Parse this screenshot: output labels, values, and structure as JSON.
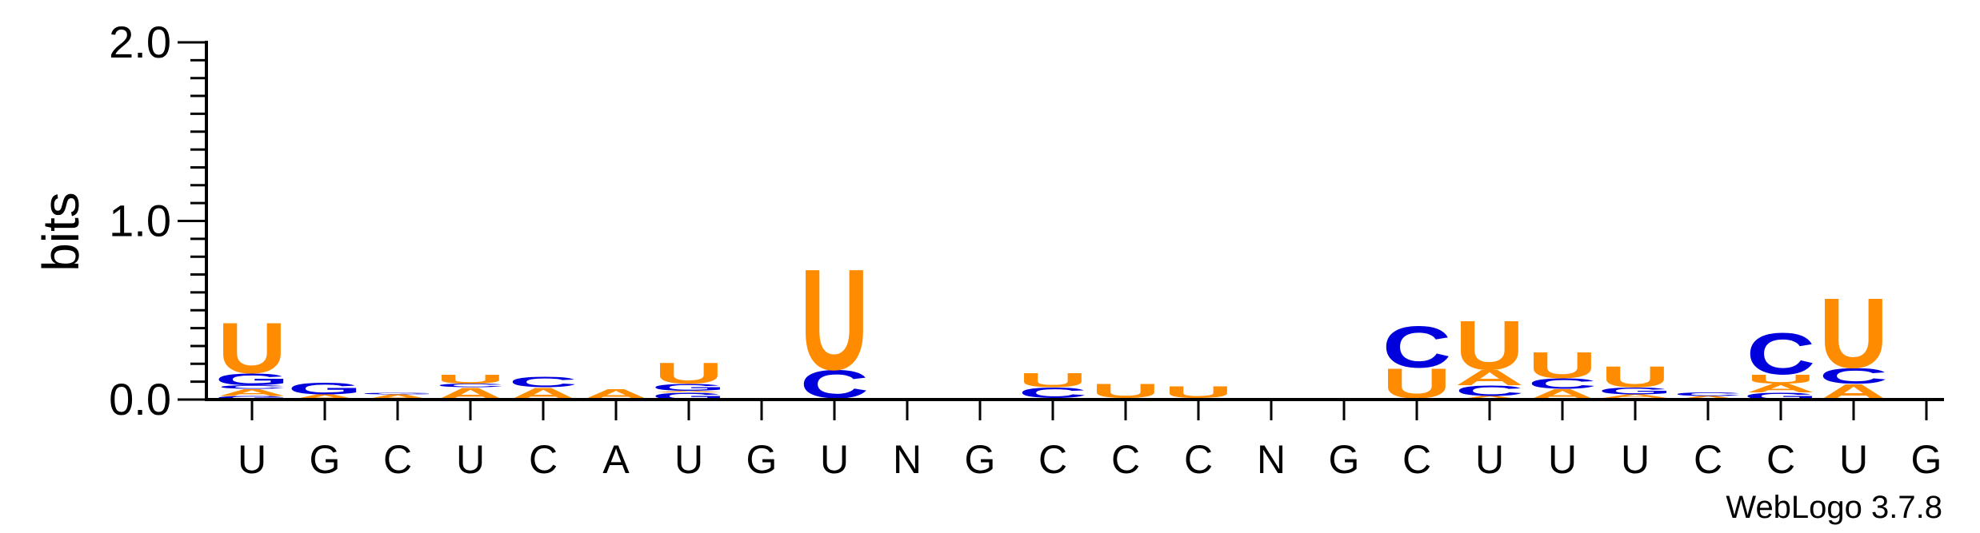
{
  "colors": {
    "U": "#FF8C00",
    "A": "#FF8C00",
    "C": "#0000DD",
    "G": "#0000DD",
    "axis": "#000000"
  },
  "chart_data": {
    "type": "sequence-logo",
    "ylabel": "bits",
    "ylim": [
      0,
      2.0
    ],
    "yticks": [
      "0.0",
      "1.0",
      "2.0"
    ],
    "credit": "WebLogo 3.7.8",
    "positions": [
      {
        "label": "U",
        "stack": [
          [
            "G",
            0.02
          ],
          [
            "A",
            0.04
          ],
          [
            "C",
            0.02
          ],
          [
            "G",
            0.07
          ],
          [
            "U",
            0.29
          ]
        ]
      },
      {
        "label": "G",
        "stack": [
          [
            "A",
            0.03
          ],
          [
            "G",
            0.07
          ]
        ]
      },
      {
        "label": "C",
        "stack": [
          [
            "A",
            0.03
          ],
          [
            "G",
            0.01
          ]
        ]
      },
      {
        "label": "U",
        "stack": [
          [
            "A",
            0.07
          ],
          [
            "C",
            0.02
          ],
          [
            "U",
            0.05
          ]
        ]
      },
      {
        "label": "C",
        "stack": [
          [
            "A",
            0.07
          ],
          [
            "C",
            0.06
          ]
        ]
      },
      {
        "label": "A",
        "stack": [
          [
            "A",
            0.06
          ]
        ]
      },
      {
        "label": "U",
        "stack": [
          [
            "G",
            0.04
          ],
          [
            "A",
            0.01
          ],
          [
            "G",
            0.04
          ],
          [
            "U",
            0.12
          ]
        ]
      },
      {
        "label": "G",
        "stack": []
      },
      {
        "label": "U",
        "stack": [
          [
            "G",
            0.01
          ],
          [
            "C",
            0.16
          ],
          [
            "U",
            0.58
          ]
        ]
      },
      {
        "label": "N",
        "stack": []
      },
      {
        "label": "G",
        "stack": [
          [
            "G",
            0.01
          ]
        ]
      },
      {
        "label": "C",
        "stack": [
          [
            "A",
            0.01
          ],
          [
            "C",
            0.06
          ],
          [
            "U",
            0.08
          ]
        ]
      },
      {
        "label": "C",
        "stack": [
          [
            "C",
            0.01
          ],
          [
            "U",
            0.08
          ]
        ]
      },
      {
        "label": "C",
        "stack": [
          [
            "A",
            0.01
          ],
          [
            "U",
            0.07
          ]
        ]
      },
      {
        "label": "N",
        "stack": []
      },
      {
        "label": "G",
        "stack": []
      },
      {
        "label": "C",
        "stack": [
          [
            "A",
            0.01
          ],
          [
            "U",
            0.17
          ],
          [
            "C",
            0.24
          ]
        ]
      },
      {
        "label": "U",
        "stack": [
          [
            "A",
            0.02
          ],
          [
            "C",
            0.06
          ],
          [
            "A",
            0.09
          ],
          [
            "U",
            0.28
          ]
        ]
      },
      {
        "label": "U",
        "stack": [
          [
            "A",
            0.06
          ],
          [
            "C",
            0.06
          ],
          [
            "U",
            0.15
          ]
        ]
      },
      {
        "label": "U",
        "stack": [
          [
            "G",
            0.01
          ],
          [
            "A",
            0.02
          ],
          [
            "G",
            0.04
          ],
          [
            "U",
            0.12
          ]
        ]
      },
      {
        "label": "C",
        "stack": [
          [
            "A",
            0.02
          ],
          [
            "C",
            0.02
          ]
        ]
      },
      {
        "label": "C",
        "stack": [
          [
            "G",
            0.04
          ],
          [
            "A",
            0.05
          ],
          [
            "U",
            0.05
          ],
          [
            "C",
            0.24
          ]
        ]
      },
      {
        "label": "U",
        "stack": [
          [
            "A",
            0.09
          ],
          [
            "C",
            0.09
          ],
          [
            "U",
            0.4
          ]
        ]
      },
      {
        "label": "G",
        "stack": []
      }
    ]
  }
}
